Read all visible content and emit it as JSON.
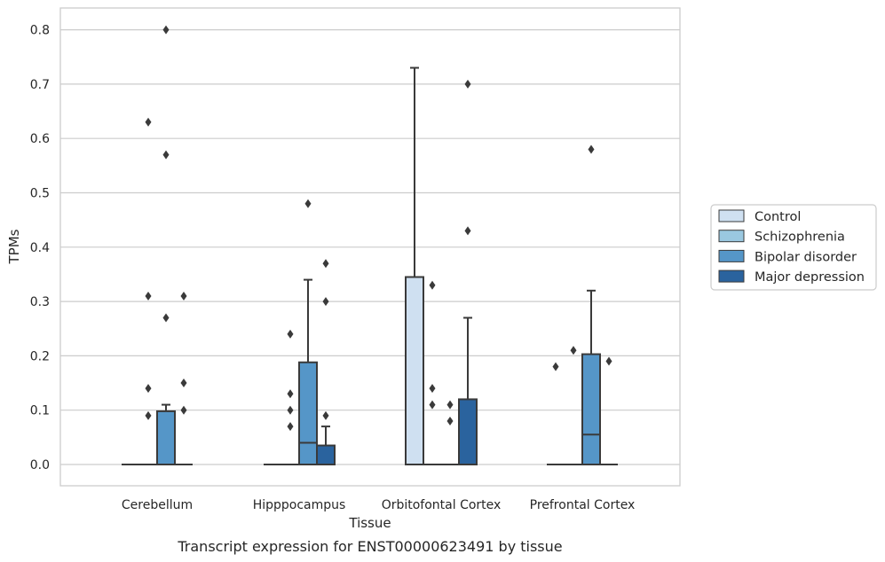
{
  "caption": "Transcript expression for ENST00000623491 by tissue",
  "chart_data": {
    "type": "box",
    "xlabel": "Tissue",
    "ylabel": "TPMs",
    "ylim": [
      -0.04,
      0.84
    ],
    "yticks": [
      "0.0",
      "0.1",
      "0.2",
      "0.3",
      "0.4",
      "0.5",
      "0.6",
      "0.7",
      "0.8"
    ],
    "grid": "horizontal",
    "legend_position": "right",
    "categories": [
      "Cerebellum",
      "Hipppocampus",
      "Orbitofontal Cortex",
      "Prefrontal Cortex"
    ],
    "series": [
      {
        "name": "Control",
        "color": "#cfe0f1",
        "boxes": [
          {
            "q1": 0,
            "median": 0,
            "q3": 0,
            "whisker_low": 0,
            "whisker_high": 0,
            "outliers": []
          },
          {
            "q1": 0,
            "median": 0,
            "q3": 0,
            "whisker_low": 0,
            "whisker_high": 0,
            "outliers": []
          },
          {
            "q1": 0,
            "median": 0,
            "q3": 0.345,
            "whisker_low": 0,
            "whisker_high": 0.73,
            "outliers": []
          },
          {
            "q1": 0,
            "median": 0,
            "q3": 0,
            "whisker_low": 0,
            "whisker_high": 0,
            "outliers": [
              0.18
            ]
          }
        ]
      },
      {
        "name": "Schizophrenia",
        "color": "#9ac8e0",
        "boxes": [
          {
            "q1": 0,
            "median": 0,
            "q3": 0,
            "whisker_low": 0,
            "whisker_high": 0,
            "outliers": [
              0.14,
              0.09,
              0.31,
              0.63
            ]
          },
          {
            "q1": 0,
            "median": 0,
            "q3": 0,
            "whisker_low": 0,
            "whisker_high": 0,
            "outliers": [
              0.24,
              0.1,
              0.07,
              0.13
            ]
          },
          {
            "q1": 0,
            "median": 0,
            "q3": 0,
            "whisker_low": 0,
            "whisker_high": 0,
            "outliers": [
              0.33,
              0.14,
              0.11
            ]
          },
          {
            "q1": 0,
            "median": 0,
            "q3": 0,
            "whisker_low": 0,
            "whisker_high": 0,
            "outliers": [
              0.21
            ]
          }
        ]
      },
      {
        "name": "Bipolar disorder",
        "color": "#5596c8",
        "boxes": [
          {
            "q1": 0,
            "median": 0,
            "q3": 0.098,
            "whisker_low": 0,
            "whisker_high": 0.11,
            "outliers": [
              0.8,
              0.57,
              0.27
            ]
          },
          {
            "q1": 0,
            "median": 0.04,
            "q3": 0.188,
            "whisker_low": 0,
            "whisker_high": 0.34,
            "outliers": [
              0.48
            ]
          },
          {
            "q1": 0,
            "median": 0,
            "q3": 0,
            "whisker_low": 0,
            "whisker_high": 0,
            "outliers": [
              0.11,
              0.08
            ]
          },
          {
            "q1": 0,
            "median": 0.055,
            "q3": 0.203,
            "whisker_low": 0,
            "whisker_high": 0.32,
            "outliers": [
              0.58
            ]
          }
        ]
      },
      {
        "name": "Major depression",
        "color": "#2a639e",
        "boxes": [
          {
            "q1": 0,
            "median": 0,
            "q3": 0,
            "whisker_low": 0,
            "whisker_high": 0,
            "outliers": [
              0.31,
              0.15,
              0.1
            ]
          },
          {
            "q1": 0,
            "median": 0,
            "q3": 0.035,
            "whisker_low": 0,
            "whisker_high": 0.07,
            "outliers": [
              0.37,
              0.3,
              0.09
            ]
          },
          {
            "q1": 0,
            "median": 0,
            "q3": 0.12,
            "whisker_low": 0,
            "whisker_high": 0.27,
            "outliers": [
              0.7,
              0.43
            ]
          },
          {
            "q1": 0,
            "median": 0,
            "q3": 0,
            "whisker_low": 0,
            "whisker_high": 0,
            "outliers": [
              0.19
            ]
          }
        ]
      }
    ]
  }
}
